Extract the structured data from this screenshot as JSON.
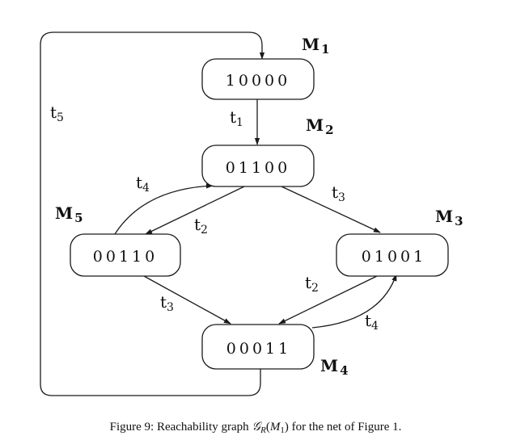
{
  "nodes": {
    "m1": {
      "name": "M",
      "index": "1",
      "marking": "10000"
    },
    "m2": {
      "name": "M",
      "index": "2",
      "marking": "01100"
    },
    "m3": {
      "name": "M",
      "index": "3",
      "marking": "01001"
    },
    "m4": {
      "name": "M",
      "index": "4",
      "marking": "00011"
    },
    "m5": {
      "name": "M",
      "index": "5",
      "marking": "00110"
    }
  },
  "edges": {
    "m1_m2": {
      "from": "M1",
      "to": "M2",
      "name": "t",
      "index": "1"
    },
    "m2_m3": {
      "from": "M2",
      "to": "M3",
      "name": "t",
      "index": "3"
    },
    "m2_m5": {
      "from": "M2",
      "to": "M5",
      "name": "t",
      "index": "2"
    },
    "m5_m2": {
      "from": "M5",
      "to": "M2",
      "name": "t",
      "index": "4"
    },
    "m5_m4": {
      "from": "M5",
      "to": "M4",
      "name": "t",
      "index": "3"
    },
    "m3_m4": {
      "from": "M3",
      "to": "M4",
      "name": "t",
      "index": "2"
    },
    "m4_m3": {
      "from": "M4",
      "to": "M3",
      "name": "t",
      "index": "4"
    },
    "m4_m1": {
      "from": "M4",
      "to": "M1",
      "name": "t",
      "index": "5"
    }
  },
  "caption": {
    "prefix": "Figure 9: Reachability graph ",
    "graph_symbol": "𝒢",
    "graph_sub": "R",
    "open": "(",
    "arg": "M",
    "arg_sub": "1",
    "close": ")",
    "suffix": " for the net of Figure 1."
  }
}
